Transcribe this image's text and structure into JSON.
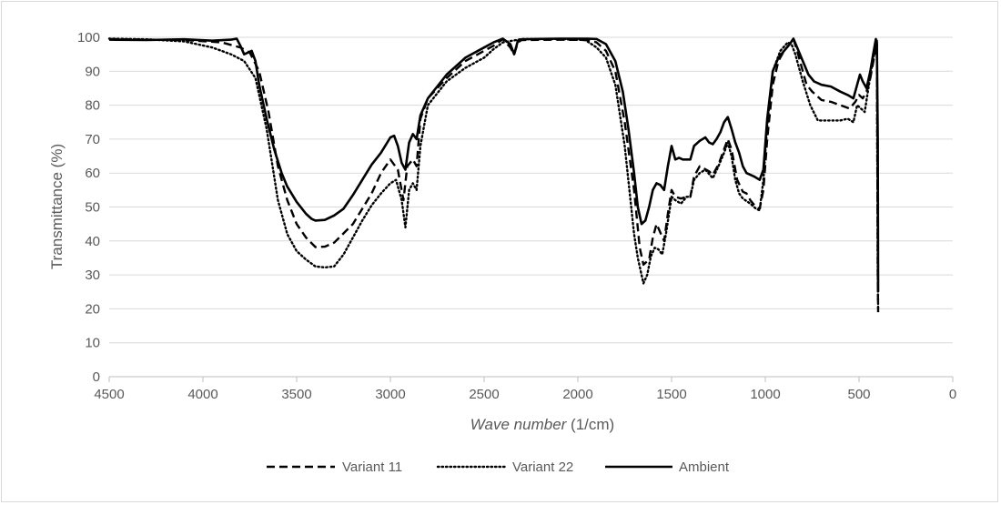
{
  "chart_data": {
    "type": "line",
    "title": "",
    "xlabel_italic": "Wave number",
    "xlabel_unit": " (1/cm)",
    "ylabel": "Transmittance (%)",
    "xlim": [
      4500,
      0
    ],
    "ylim": [
      0,
      100
    ],
    "x_ticks": [
      4500,
      4000,
      3500,
      3000,
      2500,
      2000,
      1500,
      1000,
      500,
      0
    ],
    "y_ticks": [
      0,
      10,
      20,
      30,
      40,
      50,
      60,
      70,
      80,
      90,
      100
    ],
    "grid": "horizontal",
    "legend_position": "bottom",
    "series": [
      {
        "name": "Variant 11",
        "style": "dashed",
        "color": "#000000",
        "points": [
          [
            4500,
            99.5
          ],
          [
            4300,
            99.3
          ],
          [
            4100,
            99.2
          ],
          [
            3900,
            98.5
          ],
          [
            3800,
            97
          ],
          [
            3750,
            95.5
          ],
          [
            3700,
            90
          ],
          [
            3650,
            78
          ],
          [
            3600,
            62
          ],
          [
            3550,
            52
          ],
          [
            3500,
            45
          ],
          [
            3450,
            41
          ],
          [
            3400,
            38.2
          ],
          [
            3350,
            38.3
          ],
          [
            3300,
            39.5
          ],
          [
            3200,
            45
          ],
          [
            3100,
            54
          ],
          [
            3050,
            60
          ],
          [
            3000,
            64
          ],
          [
            2960,
            61
          ],
          [
            2930,
            52
          ],
          [
            2910,
            62
          ],
          [
            2880,
            64
          ],
          [
            2860,
            62
          ],
          [
            2840,
            76
          ],
          [
            2800,
            82
          ],
          [
            2700,
            88
          ],
          [
            2600,
            93
          ],
          [
            2500,
            96
          ],
          [
            2450,
            97.5
          ],
          [
            2400,
            99.5
          ],
          [
            2360,
            97
          ],
          [
            2340,
            95
          ],
          [
            2320,
            98.5
          ],
          [
            2300,
            99.2
          ],
          [
            2100,
            99.3
          ],
          [
            1950,
            99.2
          ],
          [
            1900,
            98.5
          ],
          [
            1850,
            96
          ],
          [
            1800,
            90
          ],
          [
            1750,
            75
          ],
          [
            1700,
            55
          ],
          [
            1670,
            38
          ],
          [
            1650,
            33
          ],
          [
            1620,
            34.5
          ],
          [
            1600,
            41
          ],
          [
            1580,
            45
          ],
          [
            1560,
            42.5
          ],
          [
            1540,
            40
          ],
          [
            1520,
            48
          ],
          [
            1500,
            55
          ],
          [
            1480,
            53
          ],
          [
            1450,
            52.5
          ],
          [
            1420,
            53
          ],
          [
            1400,
            53
          ],
          [
            1380,
            59
          ],
          [
            1350,
            62
          ],
          [
            1300,
            60.5
          ],
          [
            1280,
            59.5
          ],
          [
            1250,
            62.5
          ],
          [
            1220,
            67
          ],
          [
            1200,
            70
          ],
          [
            1180,
            67
          ],
          [
            1150,
            58
          ],
          [
            1120,
            54.5
          ],
          [
            1100,
            54
          ],
          [
            1080,
            52
          ],
          [
            1050,
            50
          ],
          [
            1030,
            49.5
          ],
          [
            1010,
            55
          ],
          [
            990,
            70
          ],
          [
            960,
            86
          ],
          [
            930,
            93
          ],
          [
            900,
            96
          ],
          [
            870,
            98
          ],
          [
            850,
            99.5
          ],
          [
            830,
            96
          ],
          [
            800,
            90
          ],
          [
            780,
            86
          ],
          [
            750,
            84
          ],
          [
            700,
            81.5
          ],
          [
            650,
            81
          ],
          [
            600,
            80
          ],
          [
            550,
            79
          ],
          [
            520,
            81
          ],
          [
            500,
            83
          ],
          [
            480,
            82
          ],
          [
            460,
            84
          ],
          [
            440,
            88
          ],
          [
            420,
            94
          ],
          [
            410,
            97
          ],
          [
            405,
            99
          ],
          [
            400,
            30
          ],
          [
            398,
            19
          ]
        ]
      },
      {
        "name": "Variant 22",
        "style": "dotted",
        "color": "#000000",
        "points": [
          [
            4500,
            99.6
          ],
          [
            4300,
            99.4
          ],
          [
            4100,
            98.8
          ],
          [
            3950,
            97
          ],
          [
            3850,
            95
          ],
          [
            3780,
            93
          ],
          [
            3720,
            88
          ],
          [
            3660,
            73
          ],
          [
            3600,
            52
          ],
          [
            3550,
            42
          ],
          [
            3500,
            37
          ],
          [
            3450,
            34.5
          ],
          [
            3400,
            32.5
          ],
          [
            3350,
            32.2
          ],
          [
            3300,
            32.5
          ],
          [
            3250,
            36
          ],
          [
            3200,
            41
          ],
          [
            3150,
            46
          ],
          [
            3100,
            50.5
          ],
          [
            3050,
            54
          ],
          [
            3000,
            57
          ],
          [
            2970,
            58
          ],
          [
            2940,
            52
          ],
          [
            2920,
            44
          ],
          [
            2900,
            55
          ],
          [
            2880,
            57
          ],
          [
            2860,
            55
          ],
          [
            2840,
            68
          ],
          [
            2800,
            80
          ],
          [
            2700,
            87
          ],
          [
            2600,
            91
          ],
          [
            2500,
            94
          ],
          [
            2450,
            96.5
          ],
          [
            2400,
            98.5
          ],
          [
            2300,
            99.5
          ],
          [
            2100,
            99.5
          ],
          [
            1960,
            99.2
          ],
          [
            1900,
            97
          ],
          [
            1850,
            94
          ],
          [
            1800,
            86
          ],
          [
            1750,
            68
          ],
          [
            1700,
            42
          ],
          [
            1680,
            35
          ],
          [
            1660,
            30
          ],
          [
            1650,
            27.5
          ],
          [
            1630,
            30
          ],
          [
            1610,
            35.5
          ],
          [
            1590,
            38
          ],
          [
            1570,
            37.5
          ],
          [
            1550,
            36
          ],
          [
            1530,
            42
          ],
          [
            1500,
            53
          ],
          [
            1480,
            52
          ],
          [
            1450,
            51
          ],
          [
            1420,
            53
          ],
          [
            1400,
            53
          ],
          [
            1380,
            58
          ],
          [
            1350,
            60
          ],
          [
            1320,
            61
          ],
          [
            1280,
            58.5
          ],
          [
            1250,
            62
          ],
          [
            1220,
            66
          ],
          [
            1200,
            69
          ],
          [
            1180,
            65
          ],
          [
            1160,
            58
          ],
          [
            1140,
            54
          ],
          [
            1120,
            52.5
          ],
          [
            1080,
            51
          ],
          [
            1050,
            49.5
          ],
          [
            1030,
            49
          ],
          [
            1010,
            58
          ],
          [
            990,
            74
          ],
          [
            960,
            90
          ],
          [
            920,
            96
          ],
          [
            880,
            98.5
          ],
          [
            860,
            98
          ],
          [
            840,
            95
          ],
          [
            800,
            87
          ],
          [
            760,
            80
          ],
          [
            720,
            75.5
          ],
          [
            680,
            75.5
          ],
          [
            640,
            75.5
          ],
          [
            600,
            75.5
          ],
          [
            560,
            76
          ],
          [
            530,
            75
          ],
          [
            510,
            80
          ],
          [
            490,
            79
          ],
          [
            470,
            78
          ],
          [
            450,
            85
          ],
          [
            430,
            92
          ],
          [
            415,
            96
          ],
          [
            405,
            98.5
          ],
          [
            400,
            30
          ],
          [
            398,
            20
          ]
        ]
      },
      {
        "name": "Ambient",
        "style": "solid",
        "color": "#000000",
        "points": [
          [
            4500,
            99.3
          ],
          [
            4300,
            99.2
          ],
          [
            4100,
            99.4
          ],
          [
            3950,
            99
          ],
          [
            3850,
            99.3
          ],
          [
            3820,
            99.6
          ],
          [
            3800,
            97.5
          ],
          [
            3780,
            95
          ],
          [
            3740,
            96
          ],
          [
            3720,
            93
          ],
          [
            3700,
            86
          ],
          [
            3660,
            76
          ],
          [
            3620,
            67
          ],
          [
            3580,
            60
          ],
          [
            3550,
            56
          ],
          [
            3500,
            51.5
          ],
          [
            3450,
            48
          ],
          [
            3420,
            46.5
          ],
          [
            3400,
            46
          ],
          [
            3350,
            46.2
          ],
          [
            3300,
            47.5
          ],
          [
            3250,
            49.5
          ],
          [
            3200,
            53.5
          ],
          [
            3150,
            58
          ],
          [
            3100,
            62.5
          ],
          [
            3050,
            66
          ],
          [
            3000,
            70.5
          ],
          [
            2980,
            71
          ],
          [
            2960,
            68
          ],
          [
            2940,
            63
          ],
          [
            2920,
            61
          ],
          [
            2900,
            69
          ],
          [
            2880,
            71.5
          ],
          [
            2860,
            70
          ],
          [
            2840,
            77
          ],
          [
            2800,
            82
          ],
          [
            2700,
            89
          ],
          [
            2600,
            94
          ],
          [
            2500,
            97
          ],
          [
            2450,
            98.5
          ],
          [
            2400,
            99.6
          ],
          [
            2360,
            98
          ],
          [
            2340,
            95
          ],
          [
            2320,
            99
          ],
          [
            2300,
            99.4
          ],
          [
            2100,
            99.6
          ],
          [
            1950,
            99.6
          ],
          [
            1900,
            99.5
          ],
          [
            1850,
            98
          ],
          [
            1800,
            93
          ],
          [
            1760,
            84
          ],
          [
            1730,
            73
          ],
          [
            1700,
            60
          ],
          [
            1680,
            50
          ],
          [
            1660,
            45
          ],
          [
            1640,
            46
          ],
          [
            1620,
            50
          ],
          [
            1600,
            55
          ],
          [
            1580,
            57
          ],
          [
            1560,
            56.5
          ],
          [
            1540,
            55
          ],
          [
            1520,
            62
          ],
          [
            1500,
            68
          ],
          [
            1480,
            64
          ],
          [
            1460,
            64.5
          ],
          [
            1440,
            64
          ],
          [
            1400,
            64
          ],
          [
            1380,
            68
          ],
          [
            1350,
            69.5
          ],
          [
            1320,
            70.5
          ],
          [
            1300,
            69
          ],
          [
            1280,
            68.5
          ],
          [
            1260,
            70
          ],
          [
            1240,
            72
          ],
          [
            1220,
            75
          ],
          [
            1200,
            76.5
          ],
          [
            1180,
            73
          ],
          [
            1160,
            69
          ],
          [
            1140,
            66
          ],
          [
            1120,
            62
          ],
          [
            1100,
            60
          ],
          [
            1060,
            59
          ],
          [
            1030,
            58
          ],
          [
            1010,
            61
          ],
          [
            990,
            76
          ],
          [
            960,
            90
          ],
          [
            930,
            94
          ],
          [
            900,
            96
          ],
          [
            870,
            98
          ],
          [
            850,
            99.6
          ],
          [
            830,
            97
          ],
          [
            800,
            93
          ],
          [
            770,
            89
          ],
          [
            740,
            87
          ],
          [
            700,
            86
          ],
          [
            650,
            85.5
          ],
          [
            600,
            84
          ],
          [
            560,
            83
          ],
          [
            530,
            82
          ],
          [
            510,
            86
          ],
          [
            495,
            89
          ],
          [
            480,
            87
          ],
          [
            460,
            85
          ],
          [
            440,
            90
          ],
          [
            425,
            95
          ],
          [
            410,
            99.5
          ],
          [
            405,
            98
          ],
          [
            400,
            70
          ],
          [
            398,
            25
          ]
        ]
      }
    ]
  }
}
